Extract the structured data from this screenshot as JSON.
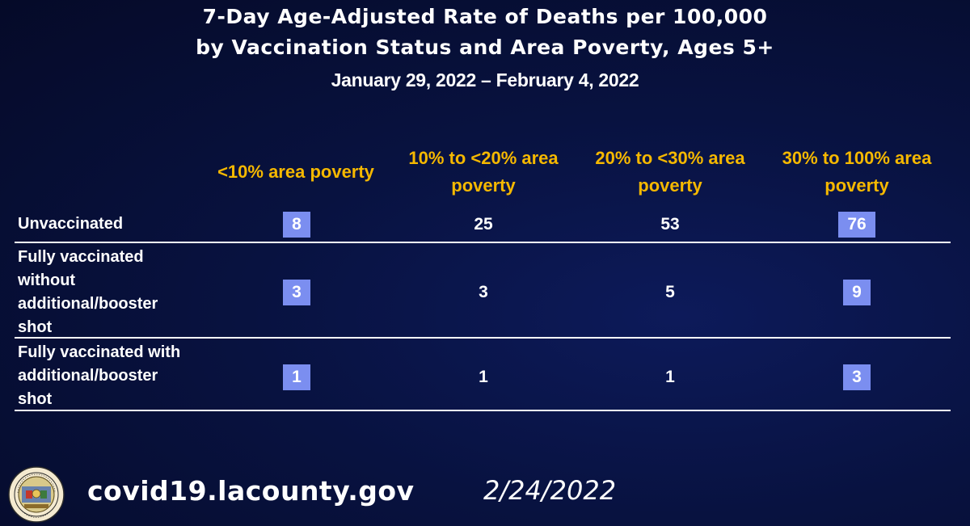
{
  "title": {
    "line1": "7-Day Age-Adjusted Rate of Deaths per 100,000",
    "line2": "by Vaccination Status and Area Poverty, Ages 5+",
    "line3": "January 29, 2022 – February 4, 2022"
  },
  "chart_data": {
    "type": "table",
    "title": "7-Day Age-Adjusted Rate of Deaths per 100,000 by Vaccination Status and Area Poverty, Ages 5+",
    "subtitle": "January 29, 2022 – February 4, 2022",
    "columns": [
      "<10% area poverty",
      "10% to <20% area poverty",
      "20% to <30% area poverty",
      "30% to 100% area poverty"
    ],
    "rows": [
      {
        "label": "Unvaccinated",
        "values": [
          8,
          25,
          53,
          76
        ],
        "highlighted": [
          true,
          false,
          false,
          true
        ]
      },
      {
        "label": "Fully vaccinated without additional/booster shot",
        "values": [
          3,
          3,
          5,
          9
        ],
        "highlighted": [
          true,
          false,
          false,
          true
        ]
      },
      {
        "label": "Fully vaccinated with additional/booster shot",
        "values": [
          1,
          1,
          1,
          3
        ],
        "highlighted": [
          true,
          false,
          false,
          true
        ]
      }
    ],
    "highlight_color": "#7b8ef0",
    "header_color": "#f5b800"
  },
  "table": {
    "col1_line1": "<10% area poverty",
    "col2_line1": "10% to <20% area",
    "col2_line2": "poverty",
    "col3_line1": "20% to <30% area",
    "col3_line2": "poverty",
    "col4_line1": "30% to 100% area",
    "col4_line2": "poverty",
    "row1_label": "Unvaccinated",
    "row2_label_lines": [
      "Fully vaccinated",
      "without",
      "additional/booster",
      "shot"
    ],
    "row3_label_lines": [
      "Fully vaccinated with",
      "additional/booster",
      "shot"
    ]
  },
  "footer": {
    "url": "covid19.lacounty.gov",
    "date": "2/24/2022"
  },
  "seal": {
    "icon": "county-seal-icon",
    "text_top": "COUNTY OF LOS ANGELES",
    "text_bottom": "CALIFORNIA"
  }
}
